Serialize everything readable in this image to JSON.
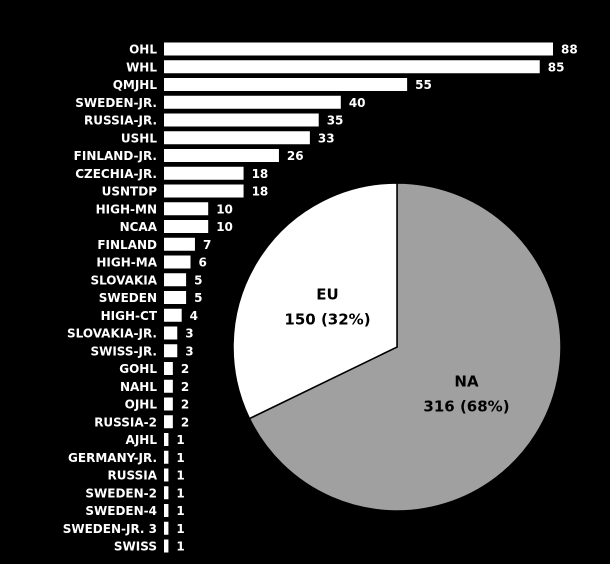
{
  "chart_data": [
    {
      "type": "bar",
      "orientation": "horizontal",
      "title": "",
      "xlabel": "",
      "ylabel": "",
      "xlim": [
        0,
        88
      ],
      "bar_color": "#ffffff",
      "grid": false,
      "categories": [
        "OHL",
        "WHL",
        "QMJHL",
        "SWEDEN-JR.",
        "RUSSIA-JR.",
        "USHL",
        "FINLAND-JR.",
        "CZECHIA-JR.",
        "USNTDP",
        "HIGH-MN",
        "NCAA",
        "FINLAND",
        "HIGH-MA",
        "SLOVAKIA",
        "SWEDEN",
        "HIGH-CT",
        "SLOVAKIA-JR.",
        "SWISS-JR.",
        "GOHL",
        "NAHL",
        "OJHL",
        "RUSSIA-2",
        "AJHL",
        "GERMANY-JR.",
        "RUSSIA",
        "SWEDEN-2",
        "SWEDEN-4",
        "SWEDEN-JR. 3",
        "SWISS"
      ],
      "values": [
        88,
        85,
        55,
        40,
        35,
        33,
        26,
        18,
        18,
        10,
        10,
        7,
        6,
        5,
        5,
        4,
        3,
        3,
        2,
        2,
        2,
        2,
        1,
        1,
        1,
        1,
        1,
        1,
        1
      ],
      "value_labels": [
        "88",
        "85",
        "55",
        "40",
        "35",
        "33",
        "26",
        "18",
        "18",
        "10",
        "10",
        "7",
        "6",
        "5",
        "5",
        "4",
        "3",
        "3",
        "2",
        "2",
        "2",
        "2",
        "1",
        "1",
        "1",
        "1",
        "1",
        "1",
        "1"
      ]
    },
    {
      "type": "pie",
      "title": "",
      "slices": [
        {
          "name": "NA",
          "value": 316,
          "label": "316 (68%)",
          "color": "#a0a0a0"
        },
        {
          "name": "EU",
          "value": 150,
          "label": "150 (32%)",
          "color": "#ffffff"
        }
      ]
    }
  ]
}
